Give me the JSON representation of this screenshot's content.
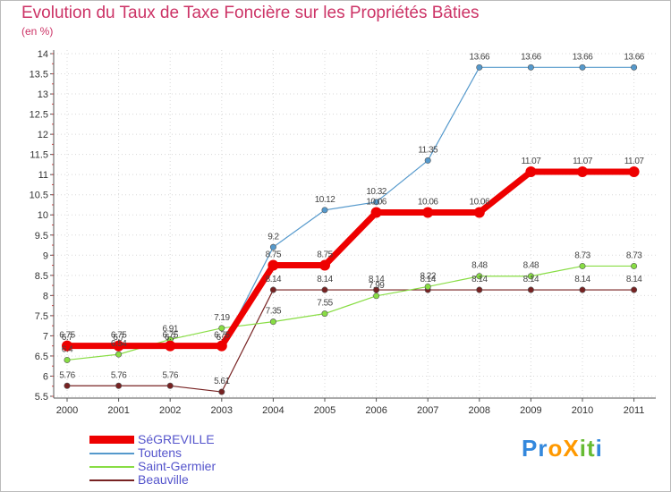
{
  "chart_data": {
    "type": "line",
    "title": "Evolution du Taux de Taxe Foncière sur les Propriétés Bâties",
    "subtitle": "(en %)",
    "categories": [
      "2000",
      "2001",
      "2002",
      "2003",
      "2004",
      "2005",
      "2006",
      "2007",
      "2008",
      "2009",
      "2010",
      "2011"
    ],
    "ylim": [
      5.5,
      14
    ],
    "yticks": [
      "5.5",
      "6",
      "6.5",
      "7",
      "7.5",
      "8",
      "8.5",
      "9",
      "9.5",
      "10",
      "10.5",
      "11",
      "11.5",
      "12",
      "12.5",
      "13",
      "13.5",
      "14"
    ],
    "series": [
      {
        "name": "SéGREVILLE",
        "color": "#ee0000",
        "values": [
          6.75,
          6.75,
          6.75,
          6.75,
          8.75,
          8.75,
          10.06,
          10.06,
          10.06,
          11.07,
          11.07,
          11.07
        ],
        "labels": [
          "6.75",
          "6.75",
          "6.75",
          "6.75",
          "8.75",
          "8.75",
          "10.06",
          "10.06",
          "10.06",
          "11.07",
          "11.07",
          "11.07"
        ]
      },
      {
        "name": "Toutens",
        "color": "#5599cc",
        "values": [
          6.7,
          6.7,
          6.7,
          6.7,
          9.2,
          10.12,
          10.32,
          11.35,
          13.66,
          13.66,
          13.66,
          13.66
        ],
        "labels": [
          "6.7",
          "6.7",
          "6.7",
          "6.7",
          "9.2",
          "10.12",
          "10.32",
          "11.35",
          "13.66",
          "13.66",
          "13.66",
          "13.66"
        ]
      },
      {
        "name": "Saint-Germier",
        "color": "#88dd44",
        "values": [
          6.4,
          6.54,
          6.91,
          7.19,
          7.35,
          7.55,
          7.99,
          8.22,
          8.48,
          8.48,
          8.73,
          8.73
        ],
        "labels": [
          "6.4",
          "6.54",
          "6.91",
          "7.19",
          "7.35",
          "7.55",
          "7.99",
          "8.22",
          "8.48",
          "8.48",
          "8.73",
          "8.73"
        ]
      },
      {
        "name": "Beauville",
        "color": "#772222",
        "values": [
          5.76,
          5.76,
          5.76,
          5.61,
          8.14,
          8.14,
          8.14,
          8.14,
          8.14,
          8.14,
          8.14,
          8.14
        ],
        "labels": [
          "5.76",
          "5.76",
          "5.76",
          "5.61",
          "8.14",
          "8.14",
          "8.14",
          "8.14",
          "8.14",
          "8.14",
          "8.14",
          "8.14"
        ]
      }
    ]
  },
  "logo": {
    "text": "ProXiti",
    "letters": [
      "P",
      "r",
      "o",
      "X",
      "i",
      "t",
      "i"
    ],
    "colors": [
      "#3388dd",
      "#3388dd",
      "#ff9900",
      "#ff9900",
      "#66bb33",
      "#66bb33",
      "#3388dd"
    ]
  }
}
